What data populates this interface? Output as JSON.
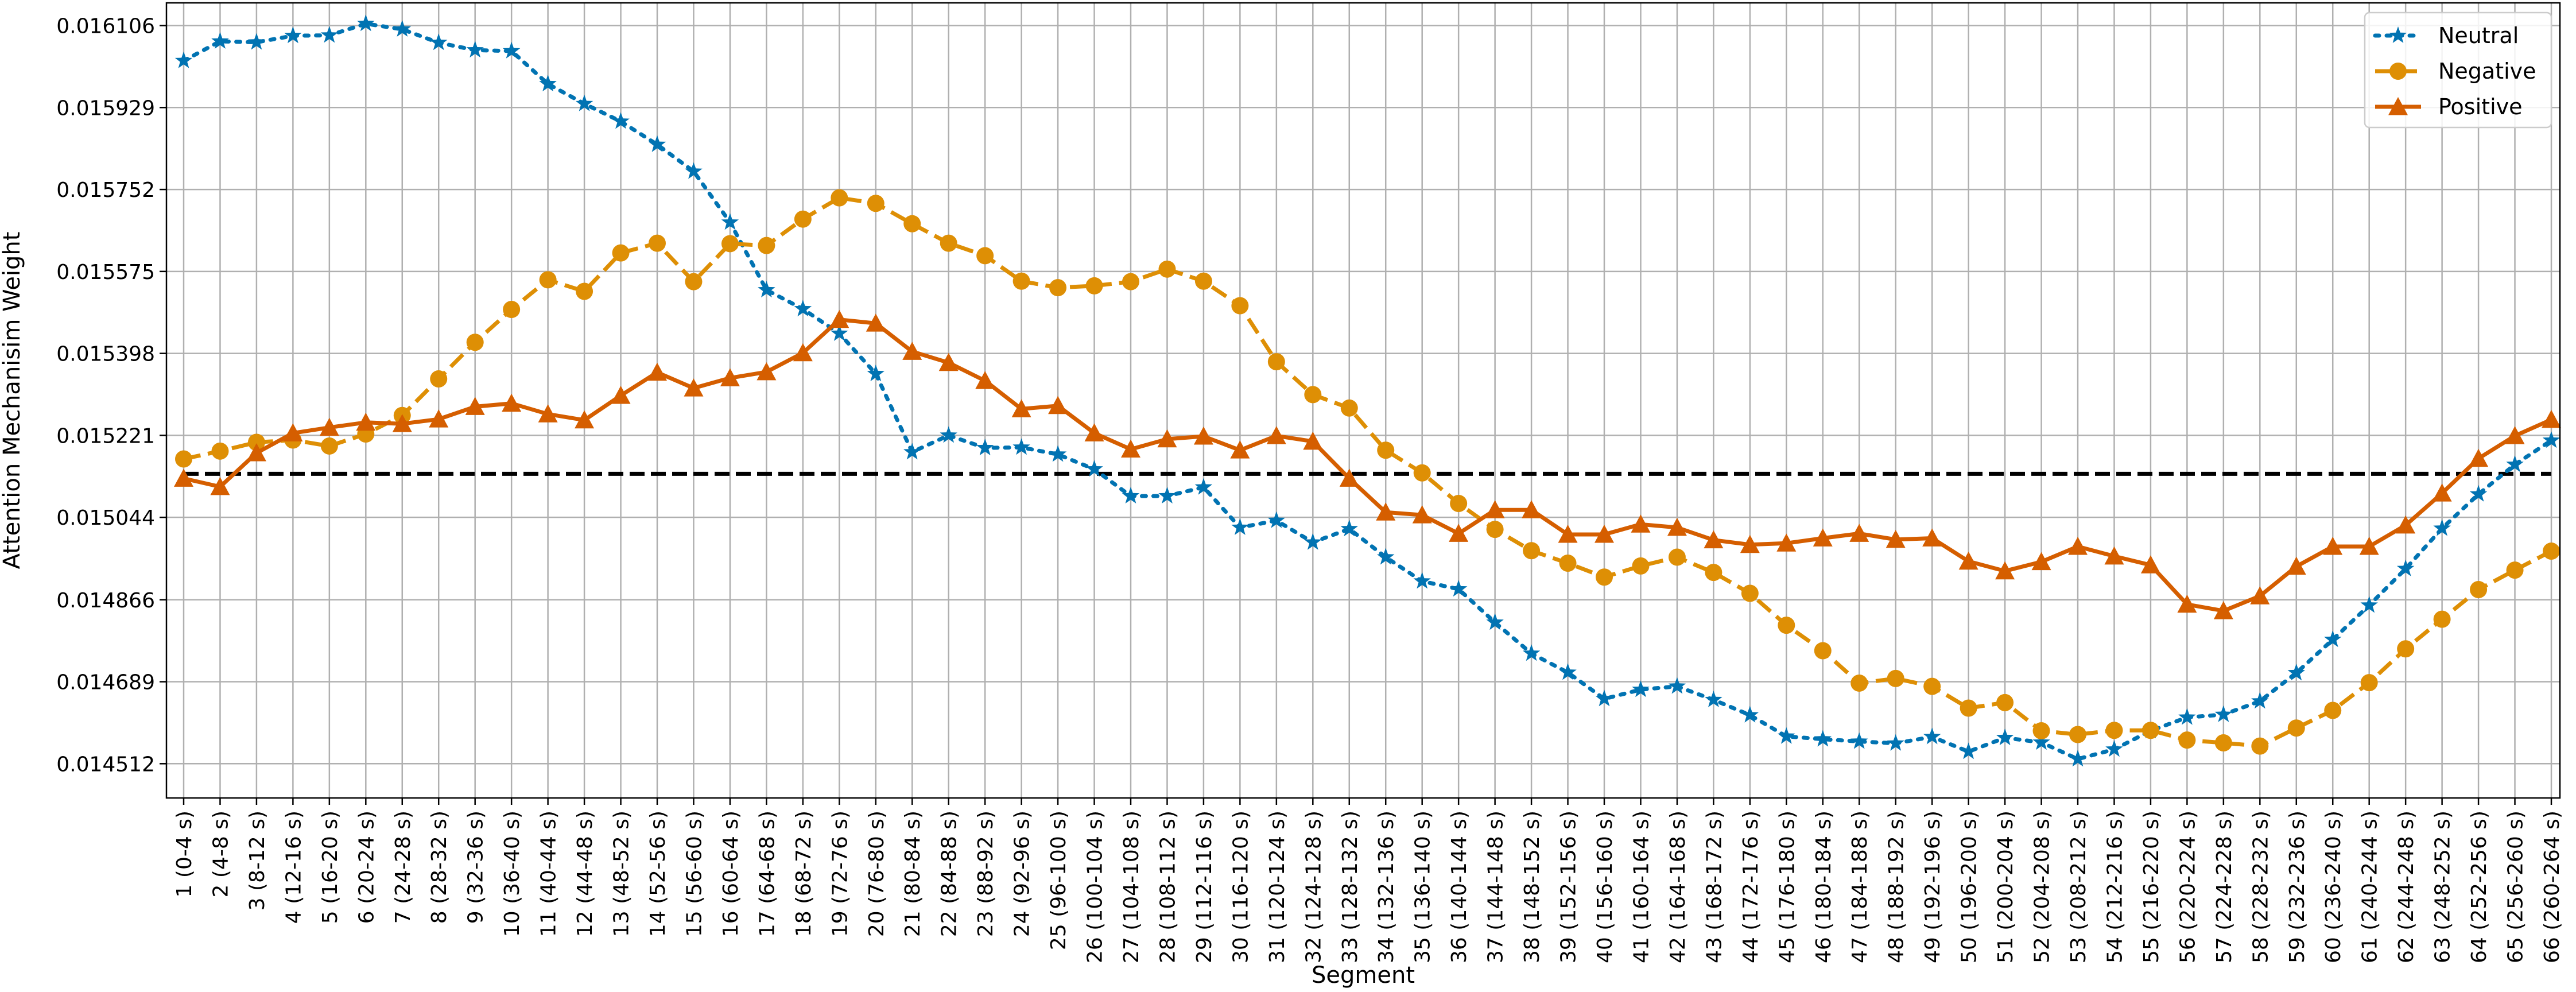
{
  "chart_data": {
    "type": "line",
    "title": "",
    "xlabel": "Segment",
    "ylabel": "Attention Mechanisim Weight",
    "categories": [
      "1 (0-4 s)",
      "2 (4-8 s)",
      "3 (8-12 s)",
      "4 (12-16 s)",
      "5 (16-20 s)",
      "6 (20-24 s)",
      "7 (24-28 s)",
      "8 (28-32 s)",
      "9 (32-36 s)",
      "10 (36-40 s)",
      "11 (40-44 s)",
      "12 (44-48 s)",
      "13 (48-52 s)",
      "14 (52-56 s)",
      "15 (56-60 s)",
      "16 (60-64 s)",
      "17 (64-68 s)",
      "18 (68-72 s)",
      "19 (72-76 s)",
      "20 (76-80 s)",
      "21 (80-84 s)",
      "22 (84-88 s)",
      "23 (88-92 s)",
      "24 (92-96 s)",
      "25 (96-100 s)",
      "26 (100-104 s)",
      "27 (104-108 s)",
      "28 (108-112 s)",
      "29 (112-116 s)",
      "30 (116-120 s)",
      "31 (120-124 s)",
      "32 (124-128 s)",
      "33 (128-132 s)",
      "34 (132-136 s)",
      "35 (136-140 s)",
      "36 (140-144 s)",
      "37 (144-148 s)",
      "38 (148-152 s)",
      "39 (152-156 s)",
      "40 (156-160 s)",
      "41 (160-164 s)",
      "42 (164-168 s)",
      "43 (168-172 s)",
      "44 (172-176 s)",
      "45 (176-180 s)",
      "46 (180-184 s)",
      "47 (184-188 s)",
      "48 (188-192 s)",
      "49 (192-196 s)",
      "50 (196-200 s)",
      "51 (200-204 s)",
      "52 (204-208 s)",
      "53 (208-212 s)",
      "54 (212-216 s)",
      "55 (216-220 s)",
      "56 (220-224 s)",
      "57 (224-228 s)",
      "58 (228-232 s)",
      "59 (232-236 s)",
      "60 (236-240 s)",
      "61 (240-244 s)",
      "62 (244-248 s)",
      "63 (248-252 s)",
      "64 (252-256 s)",
      "65 (256-260 s)",
      "66 (260-264 s)"
    ],
    "y_ticks": [
      "0.014512",
      "0.014689",
      "0.014866",
      "0.015044",
      "0.015221",
      "0.015398",
      "0.015575",
      "0.015752",
      "0.015929",
      "0.016106"
    ],
    "ylim": [
      0.014438,
      0.016155
    ],
    "grid": true,
    "legend_position": "top-right",
    "reference_line": {
      "y": 0.015138,
      "style": "dashed",
      "color": "#000000"
    },
    "series": [
      {
        "name": "Neutral",
        "color": "#0173b2",
        "line_style": "dotted",
        "marker": "star",
        "values": [
          0.01603,
          0.016072,
          0.01607,
          0.016084,
          0.016085,
          0.01611,
          0.016098,
          0.016069,
          0.016053,
          0.016051,
          0.01598,
          0.015937,
          0.015899,
          0.015849,
          0.015791,
          0.015681,
          0.015535,
          0.015494,
          0.015441,
          0.015354,
          0.015185,
          0.015221,
          0.015194,
          0.015195,
          0.01518,
          0.015148,
          0.01509,
          0.01509,
          0.015109,
          0.015022,
          0.015037,
          0.01499,
          0.015019,
          0.014958,
          0.014906,
          0.014889,
          0.014817,
          0.01475,
          0.014709,
          0.014652,
          0.014672,
          0.014679,
          0.01465,
          0.014617,
          0.014571,
          0.014565,
          0.01456,
          0.014556,
          0.01457,
          0.014538,
          0.014568,
          0.014558,
          0.014522,
          0.014543,
          0.014583,
          0.014612,
          0.014618,
          0.014647,
          0.014708,
          0.01478,
          0.014854,
          0.014933,
          0.01502,
          0.015094,
          0.015158,
          0.01521
        ]
      },
      {
        "name": "Negative",
        "color": "#de8f05",
        "line_style": "dashed",
        "marker": "circle",
        "values": [
          0.01517,
          0.015187,
          0.015206,
          0.015211,
          0.015198,
          0.015224,
          0.015264,
          0.015343,
          0.015422,
          0.015493,
          0.015557,
          0.015532,
          0.015615,
          0.015636,
          0.015553,
          0.015635,
          0.015631,
          0.015688,
          0.015734,
          0.015722,
          0.015678,
          0.015636,
          0.015609,
          0.015554,
          0.01554,
          0.015544,
          0.015553,
          0.01558,
          0.015554,
          0.015501,
          0.01538,
          0.015309,
          0.01528,
          0.015189,
          0.01514,
          0.015074,
          0.015018,
          0.014972,
          0.014945,
          0.014915,
          0.014939,
          0.014958,
          0.014925,
          0.01488,
          0.014811,
          0.014756,
          0.014686,
          0.014696,
          0.014679,
          0.014632,
          0.014644,
          0.014583,
          0.014575,
          0.014584,
          0.014584,
          0.014563,
          0.014557,
          0.01455,
          0.014589,
          0.014627,
          0.014687,
          0.01476,
          0.014824,
          0.014888,
          0.01493,
          0.014971
        ]
      },
      {
        "name": "Positive",
        "color": "#d55e00",
        "line_style": "solid",
        "marker": "triangle",
        "values": [
          0.015128,
          0.01511,
          0.015183,
          0.015226,
          0.015238,
          0.015249,
          0.015246,
          0.015256,
          0.015283,
          0.01529,
          0.015267,
          0.015254,
          0.015307,
          0.015357,
          0.015323,
          0.015345,
          0.015358,
          0.015399,
          0.015471,
          0.015463,
          0.015402,
          0.015378,
          0.015339,
          0.015278,
          0.015285,
          0.015226,
          0.015191,
          0.015213,
          0.015219,
          0.015189,
          0.01522,
          0.015208,
          0.015128,
          0.015055,
          0.015049,
          0.015009,
          0.01506,
          0.01506,
          0.015007,
          0.015007,
          0.015029,
          0.015022,
          0.014995,
          0.014985,
          0.014988,
          0.014999,
          0.015009,
          0.014996,
          0.014999,
          0.014949,
          0.014928,
          0.014948,
          0.014981,
          0.01496,
          0.014941,
          0.014856,
          0.014842,
          0.014874,
          0.014938,
          0.014981,
          0.014981,
          0.015027,
          0.015096,
          0.015171,
          0.01522,
          0.015255
        ]
      }
    ]
  }
}
